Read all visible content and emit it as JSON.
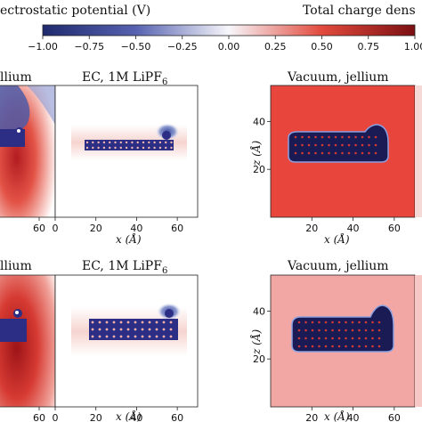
{
  "header": {
    "left_title": "ectrostatic potential (V)",
    "right_title": "Total charge dens"
  },
  "colorbar": {
    "ticks": [
      "−1.00",
      "−0.75",
      "−0.50",
      "−0.25",
      "0.00",
      "0.25",
      "0.50",
      "0.75",
      "1.00"
    ],
    "colors": [
      "#2b2e84",
      "#f7f7fb",
      "#c81a1e"
    ]
  },
  "panels": {
    "top_left_title": "llium",
    "top_mid_title": "EC, 1M LiPF",
    "top_mid_sub": "6",
    "top_right_title": "Vacuum, jellium",
    "bot_left_title": "llium",
    "bot_mid_title": "EC, 1M LiPF",
    "bot_mid_sub": "6",
    "bot_right_title": "Vacuum, jellium"
  },
  "axes": {
    "xlabel": "x (Å)",
    "ylabel": "z (Å)",
    "left_xticks": [
      "60"
    ],
    "mid_xticks": [
      "0",
      "20",
      "40",
      "60"
    ],
    "right_xticks": [
      "20",
      "40",
      "60"
    ],
    "right_yticks": [
      "20",
      "40"
    ]
  },
  "chart_data": {
    "type": "heatmap",
    "colorbar_range": [
      -1.0,
      1.0
    ],
    "colorbar_label": "ectrostatic potential (V)",
    "xlim": [
      0,
      70
    ],
    "zlim": [
      0,
      55
    ]
  }
}
